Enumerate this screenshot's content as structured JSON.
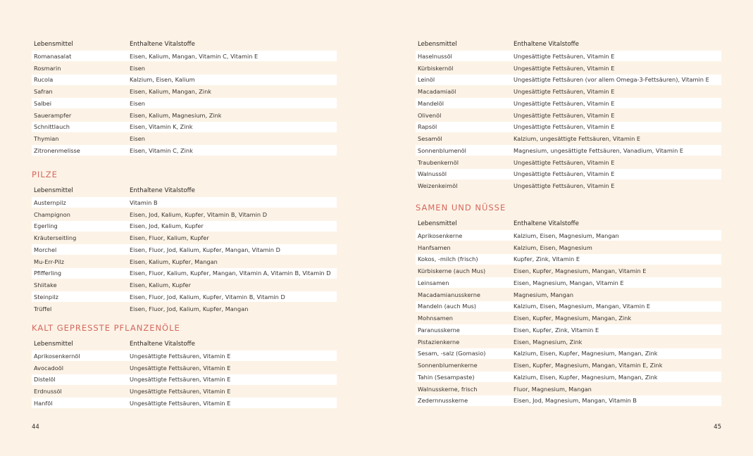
{
  "pages": [
    {
      "page_number": "44",
      "sections": [
        {
          "columns": [
            "Lebensmittel",
            "Enthaltene Vitalstoffe"
          ],
          "rows": [
            [
              "Romanasalat",
              "Eisen, Kalium, Mangan, Vitamin C, Vitamin E"
            ],
            [
              "Rosmarin",
              "Eisen"
            ],
            [
              "Rucola",
              "Kalzium, Eisen, Kalium"
            ],
            [
              "Safran",
              "Eisen, Kalium, Mangan, Zink"
            ],
            [
              "Salbei",
              "Eisen"
            ],
            [
              "Sauerampfer",
              "Eisen, Kalium, Magnesium, Zink"
            ],
            [
              "Schnittlauch",
              "Eisen, Vitamin K, Zink"
            ],
            [
              "Thymian",
              "Eisen"
            ],
            [
              "Zitronenmelisse",
              "Eisen, Vitamin C, Zink"
            ]
          ]
        },
        {
          "heading": "PILZE",
          "columns": [
            "Lebensmittel",
            "Enthaltene Vitalstoffe"
          ],
          "rows": [
            [
              "Austernpilz",
              "Vitamin B"
            ],
            [
              "Champignon",
              "Eisen, Jod, Kalium, Kupfer, Vitamin B, Vitamin D"
            ],
            [
              "Egerling",
              "Eisen, Jod, Kalium, Kupfer"
            ],
            [
              "Kräuterseitling",
              "Eisen, Fluor, Kalium, Kupfer"
            ],
            [
              "Morchel",
              "Eisen, Fluor, Jod, Kalium, Kupfer, Mangan, Vitamin D"
            ],
            [
              "Mu-Err-Pilz",
              "Eisen, Kalium, Kupfer, Mangan"
            ],
            [
              "Pfifferling",
              "Eisen, Fluor, Kalium, Kupfer, Mangan, Vitamin A, Vitamin B, Vitamin D"
            ],
            [
              "Shiitake",
              "Eisen, Kalium, Kupfer"
            ],
            [
              "Steinpilz",
              "Eisen, Fluor, Jod, Kalium, Kupfer, Vitamin B, Vitamin D"
            ],
            [
              "Trüffel",
              "Eisen, Fluor, Jod, Kalium, Kupfer, Mangan"
            ]
          ]
        },
        {
          "heading": "KALT GEPRESSTE PFLANZENÖLE",
          "columns": [
            "Lebensmittel",
            "Enthaltene Vitalstoffe"
          ],
          "rows": [
            [
              "Aprikosenkernöl",
              "Ungesättigte Fettsäuren, Vitamin E"
            ],
            [
              "Avocadoöl",
              "Ungesättigte Fettsäuren, Vitamin E"
            ],
            [
              "Distelöl",
              "Ungesättigte Fettsäuren, Vitamin E"
            ],
            [
              "Erdnussöl",
              "Ungesättigte Fettsäuren, Vitamin E"
            ],
            [
              "Hanföl",
              "Ungesättigte Fettsäuren, Vitamin E"
            ]
          ]
        }
      ]
    },
    {
      "page_number": "45",
      "sections": [
        {
          "columns": [
            "Lebensmittel",
            "Enthaltene Vitalstoffe"
          ],
          "rows": [
            [
              "Haselnussöl",
              "Ungesättigte Fettsäuren, Vitamin E"
            ],
            [
              "Kürbiskernöl",
              "Ungesättigte Fettsäuren, Vitamin E"
            ],
            [
              "Leinöl",
              "Ungesättigte Fettsäuren (vor allem Omega-3-Fettsäuren), Vitamin E"
            ],
            [
              "Macadamiaöl",
              "Ungesättigte Fettsäuren, Vitamin E"
            ],
            [
              "Mandelöl",
              "Ungesättigte Fettsäuren, Vitamin E"
            ],
            [
              "Olivenöl",
              "Ungesättigte Fettsäuren, Vitamin E"
            ],
            [
              "Rapsöl",
              "Ungesättigte Fettsäuren, Vitamin E"
            ],
            [
              "Sesamöl",
              "Kalzium, ungesättigte Fettsäuren, Vitamin E"
            ],
            [
              "Sonnenblumenöl",
              "Magnesium, ungesättigte Fettsäuren, Vanadium, Vitamin E"
            ],
            [
              "Traubenkernöl",
              "Ungesättigte Fettsäuren, Vitamin E"
            ],
            [
              "Walnussöl",
              "Ungesättigte Fettsäuren, Vitamin E"
            ],
            [
              "Weizenkeimöl",
              "Ungesättigte Fettsäuren, Vitamin E"
            ]
          ]
        },
        {
          "heading": "SAMEN UND NÜSSE",
          "columns": [
            "Lebensmittel",
            "Enthaltene Vitalstoffe"
          ],
          "rows": [
            [
              "Aprikosenkerne",
              "Kalzium, Eisen, Magnesium, Mangan"
            ],
            [
              "Hanfsamen",
              "Kalzium, Eisen, Magnesium"
            ],
            [
              "Kokos, -milch (frisch)",
              "Kupfer, Zink, Vitamin E"
            ],
            [
              "Kürbiskerne (auch Mus)",
              "Eisen, Kupfer, Magnesium, Mangan, Vitamin E"
            ],
            [
              "Leinsamen",
              "Eisen, Magnesium, Mangan, Vitamin E"
            ],
            [
              "Macadamianusskerne",
              "Magnesium, Mangan"
            ],
            [
              "Mandeln (auch Mus)",
              "Kalzium, Eisen, Magnesium, Mangan, Vitamin E"
            ],
            [
              "Mohnsamen",
              "Eisen, Kupfer, Magnesium, Mangan, Zink"
            ],
            [
              "Paranusskerne",
              "Eisen, Kupfer, Zink, Vitamin E"
            ],
            [
              "Pistazienkerne",
              "Eisen, Magnesium, Zink"
            ],
            [
              "Sesam, -salz (Gomasio)",
              "Kalzium, Eisen, Kupfer, Magnesium, Mangan, Zink"
            ],
            [
              "Sonnenblumenkerne",
              "Eisen, Kupfer, Magnesium, Mangan, Vitamin E, Zink"
            ],
            [
              "Tahin (Sesampaste)",
              "Kalzium, Eisen, Kupfer, Magnesium, Mangan, Zink"
            ],
            [
              "Walnusskerne, frisch",
              "Fluor, Magnesium, Mangan"
            ],
            [
              "Zedernnusskerne",
              "Eisen, Jod, Magnesium, Mangan, Vitamin B"
            ]
          ]
        }
      ]
    }
  ]
}
